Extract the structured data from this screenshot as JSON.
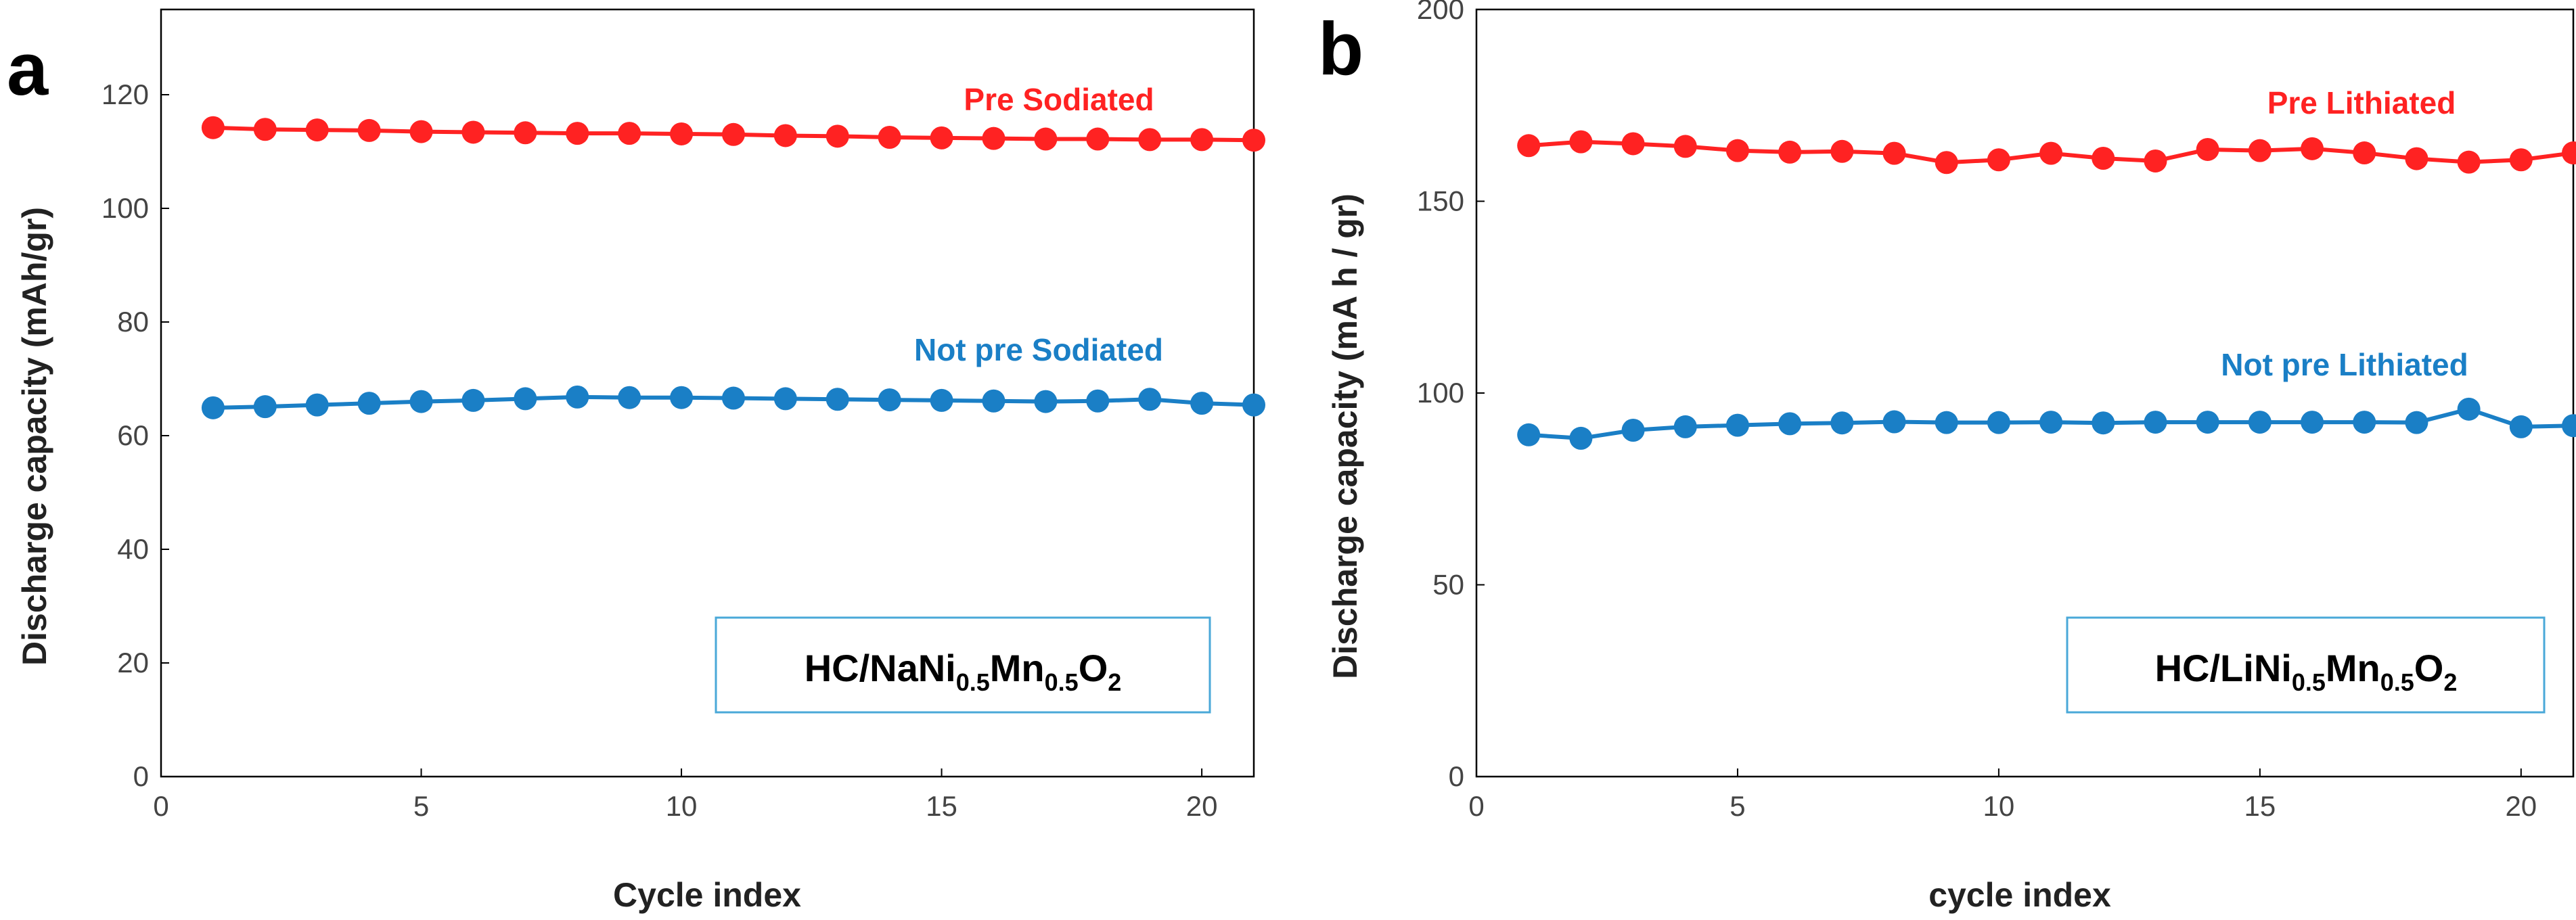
{
  "chart_data": [
    {
      "type": "line",
      "panel_label": "a",
      "xlabel": "Cycle index",
      "ylabel": "Discharge capacity (mAh/gr)",
      "xlim": [
        0,
        21
      ],
      "ylim": [
        0,
        135
      ],
      "xticks": [
        0,
        5,
        10,
        15,
        20
      ],
      "yticks": [
        0,
        20,
        40,
        60,
        80,
        100,
        120
      ],
      "inset_box": {
        "parts": [
          "HC/NaNi",
          "0.5",
          "Mn",
          "0.5",
          "O",
          "2"
        ]
      },
      "x": [
        1,
        2,
        3,
        4,
        5,
        6,
        7,
        8,
        9,
        10,
        11,
        12,
        13,
        14,
        15,
        16,
        17,
        18,
        19,
        20,
        21
      ],
      "series": [
        {
          "name": "Pre Sodiated",
          "color": "#ff2222",
          "values": [
            114.2,
            113.9,
            113.8,
            113.7,
            113.5,
            113.4,
            113.3,
            113.2,
            113.2,
            113.1,
            113.0,
            112.8,
            112.7,
            112.5,
            112.4,
            112.3,
            112.2,
            112.2,
            112.1,
            112.1,
            112.0
          ]
        },
        {
          "name": "Not pre Sodiated",
          "color": "#1a7fc6",
          "values": [
            64.9,
            65.1,
            65.4,
            65.7,
            66.0,
            66.2,
            66.5,
            66.8,
            66.7,
            66.7,
            66.6,
            66.5,
            66.4,
            66.3,
            66.2,
            66.1,
            66.0,
            66.1,
            66.4,
            65.7,
            65.4
          ]
        }
      ]
    },
    {
      "type": "line",
      "panel_label": "b",
      "xlabel": "cycle index",
      "ylabel": "Discharge capacity (mA h / gr)",
      "xlim": [
        0,
        21
      ],
      "ylim": [
        0,
        200
      ],
      "xticks": [
        0,
        5,
        10,
        15,
        20
      ],
      "yticks": [
        0,
        50,
        100,
        150,
        200
      ],
      "inset_box": {
        "parts": [
          "HC/LiNi",
          "0.5",
          "Mn",
          "0.5",
          "O",
          "2"
        ]
      },
      "x": [
        1,
        2,
        3,
        4,
        5,
        6,
        7,
        8,
        9,
        10,
        11,
        12,
        13,
        14,
        15,
        16,
        17,
        18,
        19,
        20,
        21
      ],
      "series": [
        {
          "name": "Pre Lithiated",
          "color": "#ff2222",
          "values": [
            164.5,
            165.5,
            165.0,
            164.3,
            163.2,
            162.8,
            163.0,
            162.5,
            160.1,
            160.8,
            162.5,
            161.2,
            160.5,
            163.5,
            163.2,
            163.7,
            162.6,
            161.1,
            160.2,
            160.8,
            162.6
          ]
        },
        {
          "name": "Not pre Lithiated",
          "color": "#1a7fc6",
          "values": [
            89.1,
            88.2,
            90.3,
            91.2,
            91.6,
            92.0,
            92.2,
            92.5,
            92.3,
            92.3,
            92.4,
            92.2,
            92.4,
            92.4,
            92.4,
            92.4,
            92.4,
            92.3,
            95.8,
            91.2,
            91.5
          ]
        }
      ]
    }
  ]
}
